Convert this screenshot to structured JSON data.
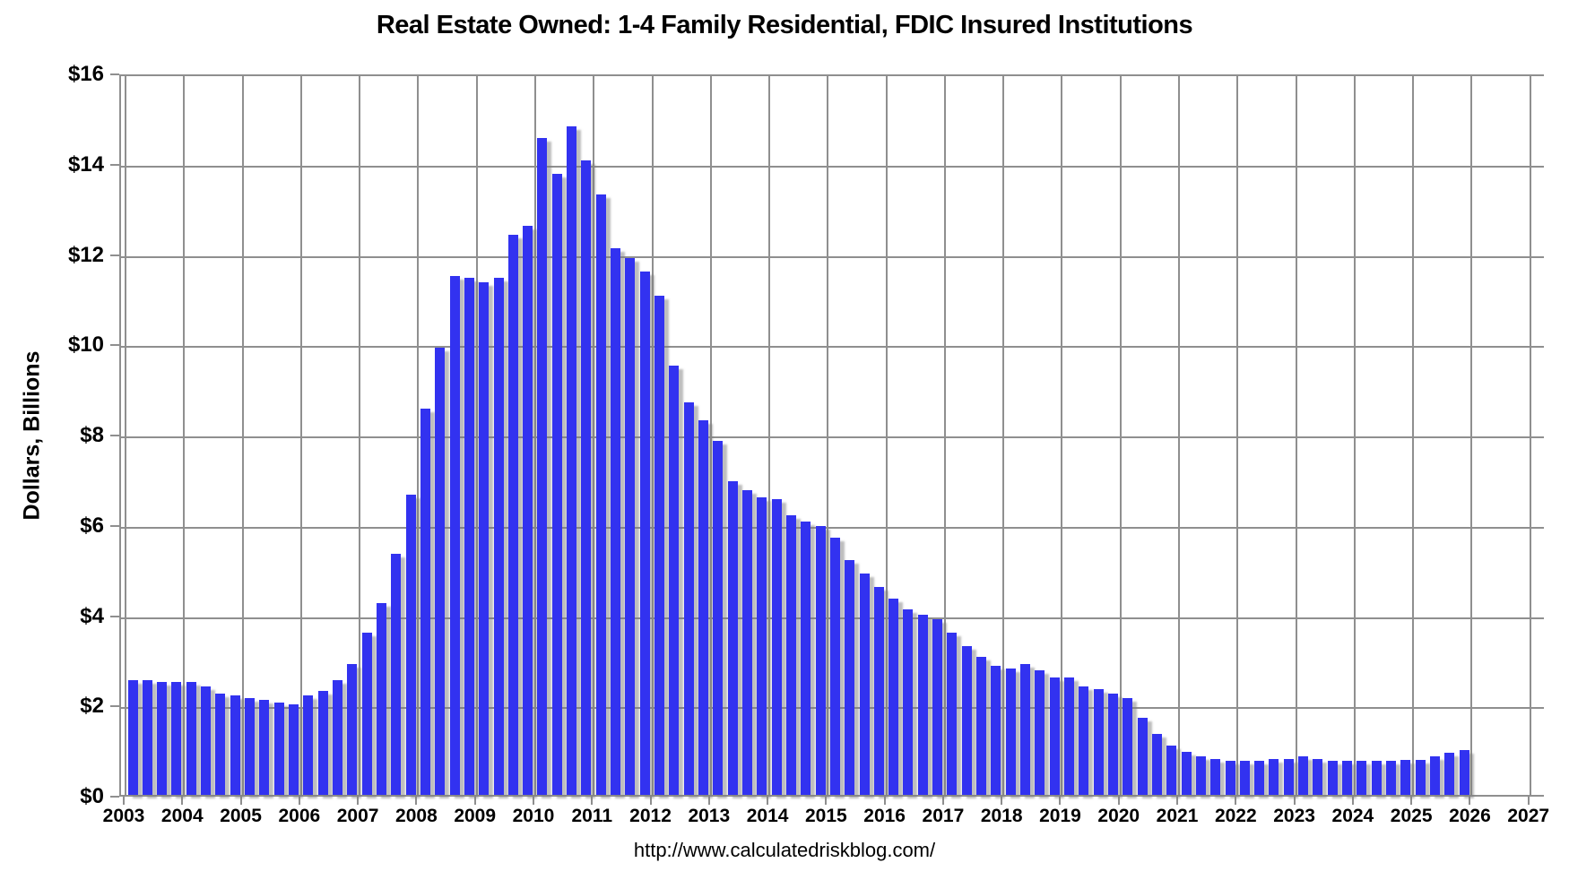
{
  "chart_data": {
    "type": "bar",
    "title": "Real Estate Owned: 1-4 Family Residential, FDIC Insured Institutions",
    "ylabel": "Dollars, Billions",
    "xlabel": "",
    "source_url": "http://www.calculatedriskblog.com/",
    "ylim": [
      0,
      16
    ],
    "y_tick_step": 2,
    "y_tick_labels": [
      "$0",
      "$2",
      "$4",
      "$6",
      "$8",
      "$10",
      "$12",
      "$14",
      "$16"
    ],
    "x_tick_labels": [
      "2003",
      "2004",
      "2005",
      "2006",
      "2007",
      "2008",
      "2009",
      "2010",
      "2011",
      "2012",
      "2013",
      "2014",
      "2015",
      "2016",
      "2017",
      "2018",
      "2019",
      "2020",
      "2021",
      "2022",
      "2023",
      "2024",
      "2025",
      "2026",
      "2027"
    ],
    "x_axis_end_year": 2027,
    "grid": "on",
    "legend_position": "none",
    "bar_color": "#3232f0",
    "gridline_color": "#8f8f8f",
    "categories": [
      "2003 Q1",
      "2003 Q2",
      "2003 Q3",
      "2003 Q4",
      "2004 Q1",
      "2004 Q2",
      "2004 Q3",
      "2004 Q4",
      "2005 Q1",
      "2005 Q2",
      "2005 Q3",
      "2005 Q4",
      "2006 Q1",
      "2006 Q2",
      "2006 Q3",
      "2006 Q4",
      "2007 Q1",
      "2007 Q2",
      "2007 Q3",
      "2007 Q4",
      "2008 Q1",
      "2008 Q2",
      "2008 Q3",
      "2008 Q4",
      "2009 Q1",
      "2009 Q2",
      "2009 Q3",
      "2009 Q4",
      "2010 Q1",
      "2010 Q2",
      "2010 Q3",
      "2010 Q4",
      "2011 Q1",
      "2011 Q2",
      "2011 Q3",
      "2011 Q4",
      "2012 Q1",
      "2012 Q2",
      "2012 Q3",
      "2012 Q4",
      "2013 Q1",
      "2013 Q2",
      "2013 Q3",
      "2013 Q4",
      "2014 Q1",
      "2014 Q2",
      "2014 Q3",
      "2014 Q4",
      "2015 Q1",
      "2015 Q2",
      "2015 Q3",
      "2015 Q4",
      "2016 Q1",
      "2016 Q2",
      "2016 Q3",
      "2016 Q4",
      "2017 Q1",
      "2017 Q2",
      "2017 Q3",
      "2017 Q4",
      "2018 Q1",
      "2018 Q2",
      "2018 Q3",
      "2018 Q4",
      "2019 Q1",
      "2019 Q2",
      "2019 Q3",
      "2019 Q4",
      "2020 Q1",
      "2020 Q2",
      "2020 Q3",
      "2020 Q4",
      "2021 Q1",
      "2021 Q2",
      "2021 Q3",
      "2021 Q4",
      "2022 Q1",
      "2022 Q2",
      "2022 Q3",
      "2022 Q4",
      "2023 Q1",
      "2023 Q2",
      "2023 Q3",
      "2023 Q4",
      "2024 Q1",
      "2024 Q2",
      "2024 Q3",
      "2024 Q4",
      "2025 Q1",
      "2025 Q2",
      "2025 Q3",
      "2025 Q4"
    ],
    "values": [
      2.55,
      2.55,
      2.5,
      2.5,
      2.5,
      2.4,
      2.25,
      2.2,
      2.15,
      2.1,
      2.05,
      2.0,
      2.2,
      2.3,
      2.55,
      2.9,
      3.6,
      4.25,
      5.35,
      6.65,
      8.55,
      9.9,
      11.5,
      11.45,
      11.35,
      11.45,
      12.4,
      12.6,
      14.55,
      13.75,
      14.8,
      14.05,
      13.3,
      12.1,
      11.9,
      11.6,
      11.05,
      9.5,
      8.7,
      8.3,
      7.85,
      6.95,
      6.75,
      6.6,
      6.55,
      6.2,
      6.05,
      5.95,
      5.7,
      5.2,
      4.9,
      4.6,
      4.35,
      4.1,
      4.0,
      3.9,
      3.6,
      3.3,
      3.05,
      2.85,
      2.8,
      2.9,
      2.75,
      2.6,
      2.6,
      2.4,
      2.35,
      2.25,
      2.15,
      1.7,
      1.35,
      1.1,
      0.95,
      0.85,
      0.8,
      0.75,
      0.75,
      0.75,
      0.8,
      0.8,
      0.85,
      0.8,
      0.75,
      0.75,
      0.75,
      0.75,
      0.75,
      0.78,
      0.78,
      0.85,
      0.93,
      1.0
    ]
  }
}
